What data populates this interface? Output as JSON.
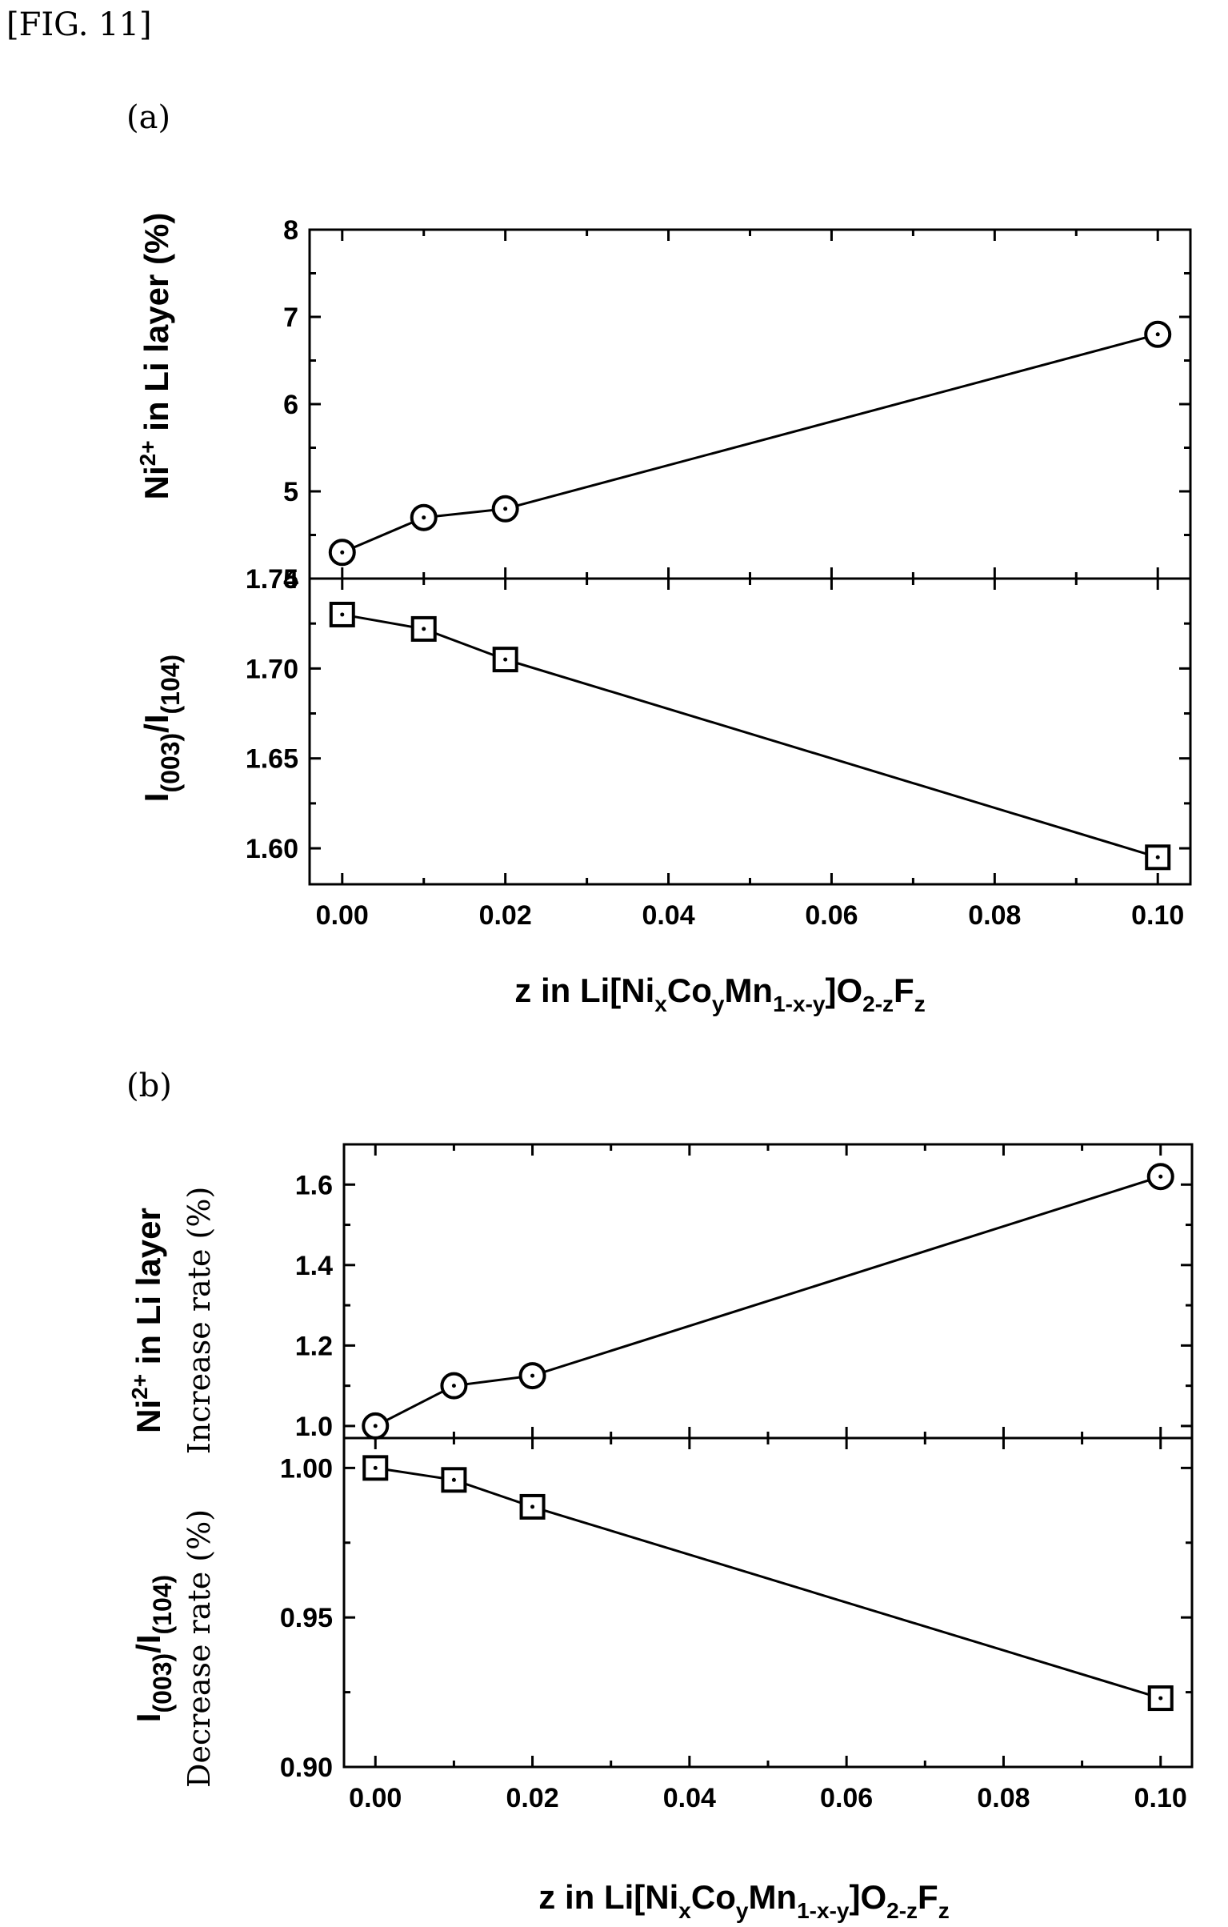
{
  "figure_label": "[FIG. 11]",
  "panels": {
    "a": {
      "label": "(a)",
      "xlabel": "z in Li[Ni",
      "top_ylabel": "Ni",
      "bottom_ylabel": "I"
    },
    "b": {
      "label": "(b)",
      "xlabel": "z in Li[Ni",
      "top_ylabel": "Ni",
      "top_ylabel_sub": "Increase rate (%)",
      "bottom_ylabel": "I",
      "bottom_ylabel_sub": "Decrease rate (%)"
    }
  },
  "label_parts": {
    "ni_sup": "2+",
    "in_li_layer": " in Li layer",
    "in_li_layer_pct": " in Li layer (%)",
    "i003": "(003)",
    "slash_i": "/I",
    "i104": "(104)",
    "x_sub": "x",
    "co": "Co",
    "y_sub": "y",
    "mn": "Mn",
    "mn_sub": "1-x-y",
    "o": "]O",
    "o_sub": "2-z",
    "f": "F",
    "f_sub": "z"
  },
  "chart_data": [
    {
      "panel": "(a) top",
      "type": "line",
      "marker": "circle",
      "x": [
        0.0,
        0.01,
        0.02,
        0.1
      ],
      "y": [
        4.3,
        4.7,
        4.8,
        6.8
      ],
      "xlim": [
        -0.004,
        0.104
      ],
      "ylim": [
        4,
        8
      ],
      "yticks": [
        "4",
        "5",
        "6",
        "7",
        "8"
      ],
      "ylabel": "Ni2+ in Li layer (%)"
    },
    {
      "panel": "(a) bottom",
      "type": "line",
      "marker": "square",
      "x": [
        0.0,
        0.01,
        0.02,
        0.1
      ],
      "y": [
        1.73,
        1.722,
        1.705,
        1.595
      ],
      "xlim": [
        -0.004,
        0.104
      ],
      "ylim": [
        1.58,
        1.75
      ],
      "yticks": [
        "1.60",
        "1.65",
        "1.70",
        "1.75"
      ],
      "xticks": [
        "0.00",
        "0.02",
        "0.04",
        "0.06",
        "0.08",
        "0.10"
      ],
      "ylabel": "I(003)/I(104)",
      "xlabel": "z in Li[NixCoyMn1-x-y]O2-zFz"
    },
    {
      "panel": "(b) top",
      "type": "line",
      "marker": "circle",
      "x": [
        0.0,
        0.01,
        0.02,
        0.1
      ],
      "y": [
        1.0,
        1.1,
        1.125,
        1.62
      ],
      "xlim": [
        -0.004,
        0.104
      ],
      "ylim": [
        0.97,
        1.7
      ],
      "yticks": [
        "1.0",
        "1.2",
        "1.4",
        "1.6"
      ],
      "ylabel": "Ni2+ in Li layer Increase rate (%)"
    },
    {
      "panel": "(b) bottom",
      "type": "line",
      "marker": "square",
      "x": [
        0.0,
        0.01,
        0.02,
        0.1
      ],
      "y": [
        1.0,
        0.996,
        0.987,
        0.923
      ],
      "xlim": [
        -0.004,
        0.104
      ],
      "ylim": [
        0.9,
        1.01
      ],
      "yticks": [
        "0.90",
        "0.95",
        "1.00"
      ],
      "xticks": [
        "0.00",
        "0.02",
        "0.04",
        "0.06",
        "0.08",
        "0.10"
      ],
      "ylabel": "I(003)/I(104) Decrease rate (%)",
      "xlabel": "z in Li[NixCoyMn1-x-y]O2-zFz"
    }
  ]
}
